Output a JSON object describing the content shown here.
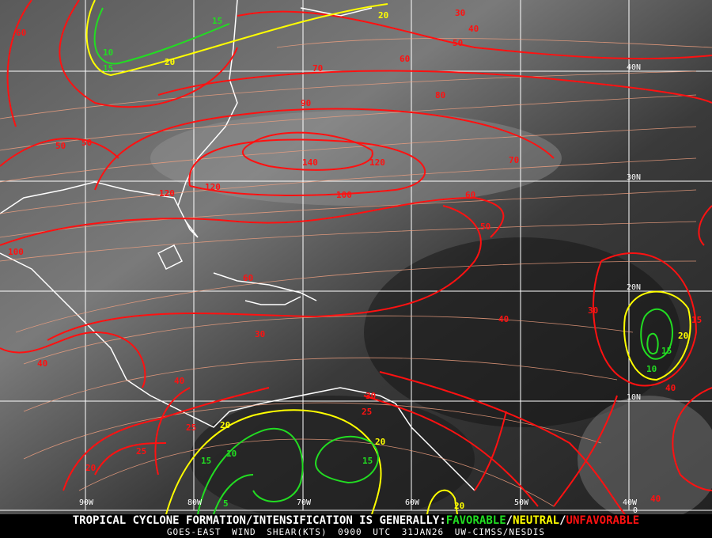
{
  "map": {
    "product": "GOES-EAST WIND SHEAR(KTS)",
    "time": "0900 UTC",
    "date": "31JAN26",
    "source": "UW-CIMSS/NESDIS",
    "headline_prefix": "TROPICAL CYCLONE FORMATION/INTENSIFICATION IS GENERALLY:",
    "legend": [
      {
        "label": "FAVORABLE",
        "color": "#22dd22"
      },
      {
        "label": "NEUTRAL",
        "color": "#ffff00"
      },
      {
        "label": "UNFAVORABLE",
        "color": "#ff1111"
      }
    ],
    "separator": "/",
    "lon_labels": [
      "90W",
      "80W",
      "70W",
      "60W",
      "50W",
      "40W"
    ],
    "lat_labels": [
      "40N",
      "30N",
      "20N",
      "10N",
      "0"
    ],
    "contour_labels": [
      "60",
      "20",
      "15",
      "10",
      "20",
      "15",
      "50",
      "40",
      "30",
      "70",
      "60",
      "90",
      "80",
      "50",
      "50",
      "140",
      "120",
      "120",
      "120",
      "100",
      "70",
      "60",
      "50",
      "100",
      "60",
      "40",
      "30",
      "20",
      "15",
      "10",
      "15",
      "40",
      "40",
      "30",
      "25",
      "20",
      "15",
      "10",
      "5",
      "20",
      "15",
      "25",
      "30",
      "25",
      "40",
      "40",
      "20",
      "20"
    ]
  }
}
